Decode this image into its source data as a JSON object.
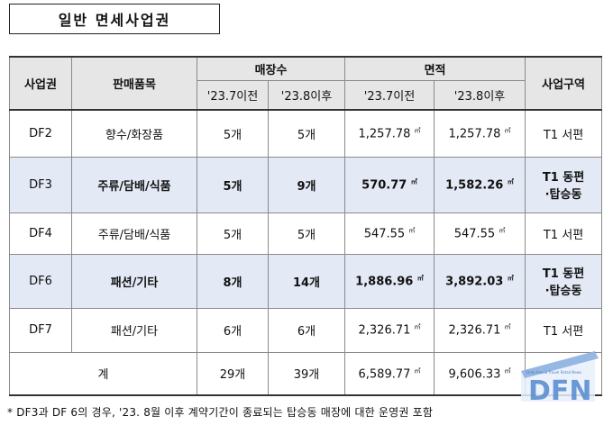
{
  "title": "일반 면세사업권",
  "headers": {
    "business": "사업권",
    "items": "판매품목",
    "stores": "매장수",
    "area": "면적",
    "zone": "사업구역",
    "before": "'23.7이전",
    "after": "'23.8이후"
  },
  "rows": [
    {
      "biz": "DF2",
      "items": "향수/화장품",
      "stores_before": "5개",
      "stores_after": "5개",
      "area_before": "1,257.78",
      "area_after": "1,257.78",
      "zone_line1": "T1 서편",
      "zone_line2": ""
    },
    {
      "biz": "DF3",
      "items": "주류/담배/식품",
      "stores_before": "5개",
      "stores_after": "9개",
      "area_before": "570.77",
      "area_after": "1,582.26",
      "zone_line1": "T1 동편",
      "zone_line2": "·탑승동"
    },
    {
      "biz": "DF4",
      "items": "주류/담배/식품",
      "stores_before": "5개",
      "stores_after": "5개",
      "area_before": "547.55",
      "area_after": "547.55",
      "zone_line1": "T1 서편",
      "zone_line2": ""
    },
    {
      "biz": "DF6",
      "items": "패션/기타",
      "stores_before": "8개",
      "stores_after": "14개",
      "area_before": "1,886.96",
      "area_after": "3,892.03",
      "zone_line1": "T1 동편",
      "zone_line2": "·탑승동"
    },
    {
      "biz": "DF7",
      "items": "패션/기타",
      "stores_before": "6개",
      "stores_after": "6개",
      "area_before": "2,326.71",
      "area_after": "2,326.71",
      "zone_line1": "T1 서편",
      "zone_line2": ""
    }
  ],
  "total": {
    "label": "계",
    "stores_before": "29개",
    "stores_after": "39개",
    "area_before": "6,589.77",
    "area_after": "9,606.33"
  },
  "unit": "㎡",
  "footnote": "* DF3과 DF 6의 경우, '23. 8월 이후 계약기간이 종료되는 탑승동 매장에 대한 운영권 포함",
  "watermark": {
    "text": "DFN",
    "small_text": "Duty-free & Travel Retail News",
    "color": "#5b8fd0"
  }
}
